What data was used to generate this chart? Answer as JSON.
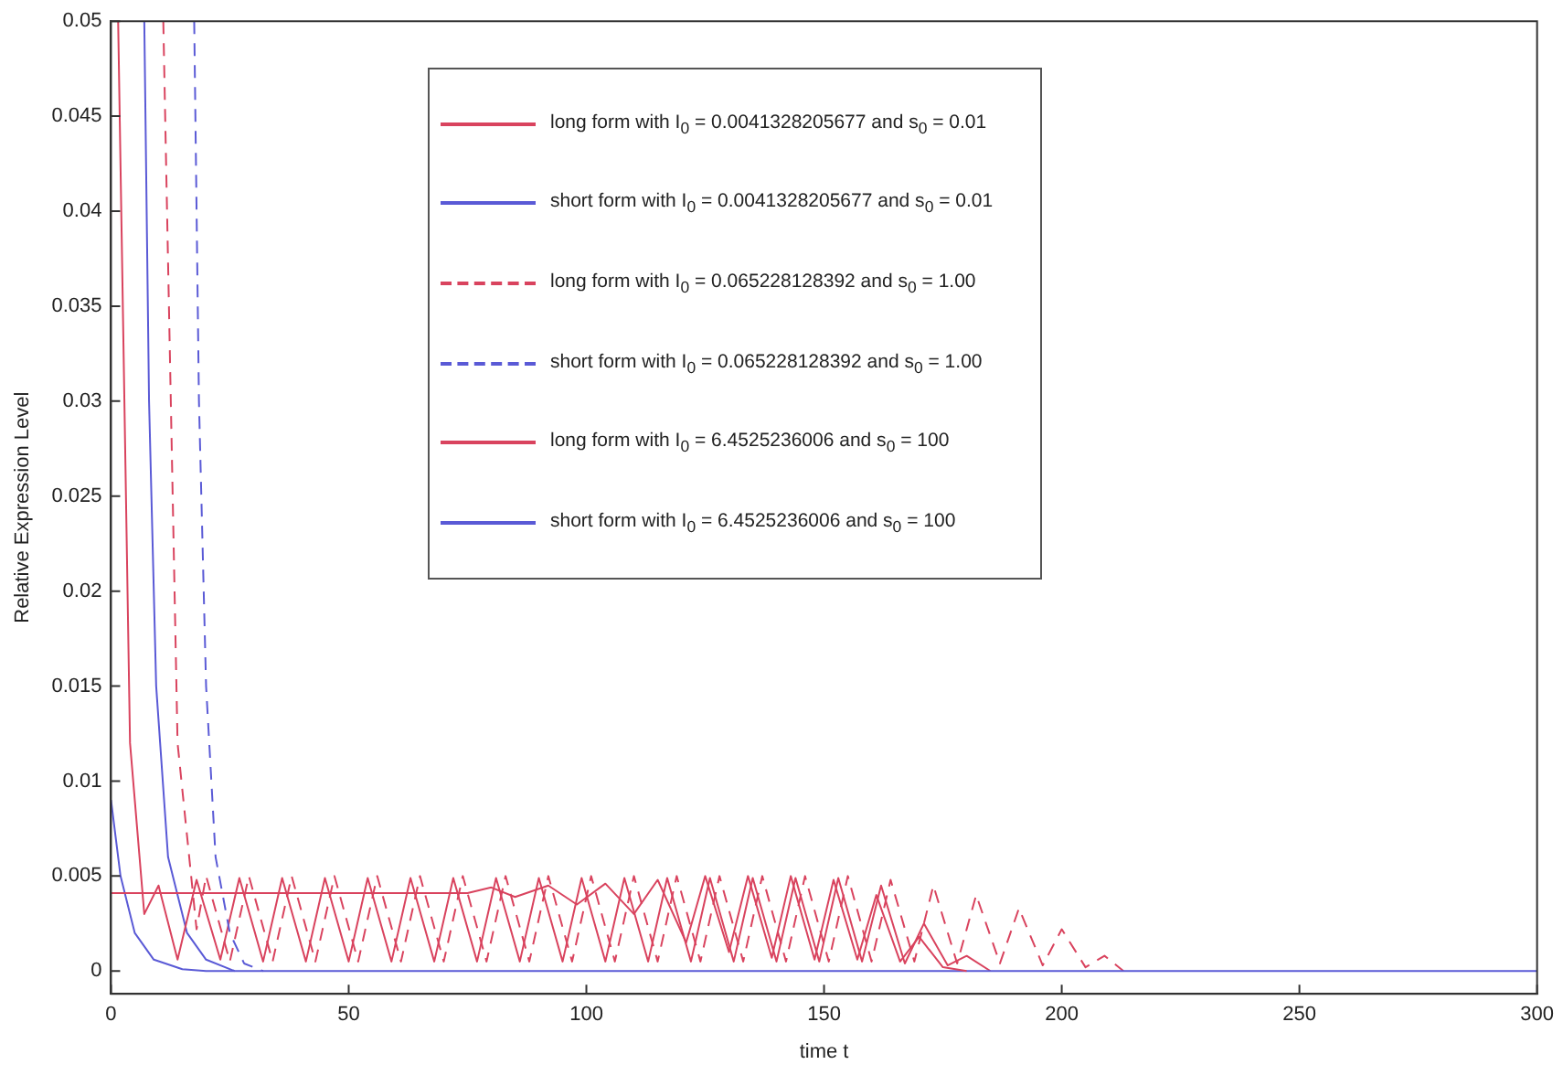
{
  "chart_data": {
    "type": "line",
    "xlabel": "time t",
    "ylabel": "Relative Expression Level",
    "xlim": [
      0,
      300
    ],
    "xticks": [
      0,
      50,
      100,
      150,
      200,
      250,
      300
    ],
    "ylim": [
      -0.0012,
      0.05
    ],
    "yticks": [
      0,
      0.005,
      0.01,
      0.015,
      0.02,
      0.025,
      0.03,
      0.035,
      0.04,
      0.045,
      0.05
    ],
    "grid": false,
    "legend": "top",
    "marker": "none",
    "series": [
      {
        "name": "long form with I$_{0}$ = 0.0041328205677 and s$_{0}$ = 0.01",
        "color": "#d9435e",
        "line_style": "solid",
        "x": [
          0,
          75,
          80,
          85,
          92,
          98,
          104,
          110,
          115,
          121,
          125,
          130,
          134,
          139,
          143,
          148,
          152,
          157,
          161,
          166,
          170,
          175,
          180
        ],
        "values": [
          0.0041,
          0.0041,
          0.0044,
          0.0039,
          0.0045,
          0.0035,
          0.0046,
          0.003,
          0.0048,
          0.0015,
          0.005,
          0.001,
          0.005,
          0.0007,
          0.005,
          0.0006,
          0.0048,
          0.0006,
          0.004,
          0.0005,
          0.0018,
          0.0002,
          0
        ]
      },
      {
        "name": "short form with I$_{0}$ = 0.0041328205677 and s$_{0}$ = 0.01",
        "color": "#5a5ad6",
        "line_style": "solid",
        "x": [
          0,
          2,
          5,
          9,
          15,
          20,
          300
        ],
        "values": [
          0.009,
          0.005,
          0.002,
          0.0006,
          0.0001,
          0,
          0
        ]
      },
      {
        "name": "long form with I$_{0}$ = 0.065228128392 and s$_{0}$ = 1.00",
        "color": "#d9435e",
        "line_style": "dashed",
        "x": [
          11,
          14,
          18,
          20,
          25,
          29,
          34,
          38,
          43,
          47,
          52,
          56,
          61,
          65,
          70,
          74,
          79,
          83,
          88,
          92,
          97,
          101,
          106,
          110,
          115,
          119,
          124,
          128,
          133,
          137,
          142,
          146,
          151,
          155,
          160,
          164,
          169,
          173,
          178,
          182,
          187,
          191,
          196,
          200,
          205,
          209,
          213
        ],
        "values": [
          0.05,
          0.012,
          0.0022,
          0.005,
          0.0005,
          0.005,
          0.0005,
          0.005,
          0.0005,
          0.005,
          0.0005,
          0.005,
          0.0005,
          0.005,
          0.0005,
          0.005,
          0.0005,
          0.005,
          0.0005,
          0.005,
          0.0005,
          0.005,
          0.0005,
          0.005,
          0.0005,
          0.005,
          0.0005,
          0.005,
          0.0005,
          0.005,
          0.0005,
          0.005,
          0.0005,
          0.005,
          0.0005,
          0.0048,
          0.0005,
          0.0045,
          0.0004,
          0.004,
          0.0004,
          0.0033,
          0.0003,
          0.0022,
          0.0002,
          0.0008,
          0
        ]
      },
      {
        "name": "short form with I$_{0}$ = 0.065228128392 and s$_{0}$ = 1.00",
        "color": "#5a5ad6",
        "line_style": "dashed",
        "x": [
          17.5,
          18.5,
          20,
          22,
          25,
          28,
          32
        ],
        "values": [
          0.05,
          0.03,
          0.015,
          0.006,
          0.002,
          0.0004,
          0
        ]
      },
      {
        "name": "long form with I$_{0}$ = 6.4525236006 and s$_{0}$ = 100",
        "color": "#d9435e",
        "line_style": "solid",
        "x": [
          1.5,
          4,
          7,
          10,
          14,
          18,
          23,
          27,
          32,
          36,
          41,
          45,
          50,
          54,
          59,
          63,
          68,
          72,
          77,
          81,
          86,
          90,
          95,
          99,
          104,
          108,
          113,
          117,
          122,
          126,
          131,
          135,
          140,
          144,
          149,
          153,
          158,
          162,
          167,
          171,
          176,
          180,
          185
        ],
        "values": [
          0.05,
          0.012,
          0.003,
          0.0045,
          0.0006,
          0.0048,
          0.0006,
          0.0049,
          0.0005,
          0.0049,
          0.0005,
          0.0049,
          0.0005,
          0.0049,
          0.0005,
          0.0049,
          0.0005,
          0.0049,
          0.0005,
          0.0049,
          0.0005,
          0.0049,
          0.0005,
          0.0049,
          0.0005,
          0.0049,
          0.0005,
          0.0049,
          0.0005,
          0.0049,
          0.0005,
          0.0049,
          0.0005,
          0.0049,
          0.0005,
          0.0049,
          0.0005,
          0.0045,
          0.0004,
          0.0025,
          0.0003,
          0.0008,
          0
        ]
      },
      {
        "name": "short form with I$_{0}$ = 6.4525236006 and s$_{0}$ = 100",
        "color": "#5a5ad6",
        "line_style": "solid",
        "x": [
          7,
          8,
          9.5,
          12,
          16,
          20,
          26
        ],
        "values": [
          0.05,
          0.03,
          0.015,
          0.006,
          0.002,
          0.0006,
          0
        ]
      }
    ]
  }
}
